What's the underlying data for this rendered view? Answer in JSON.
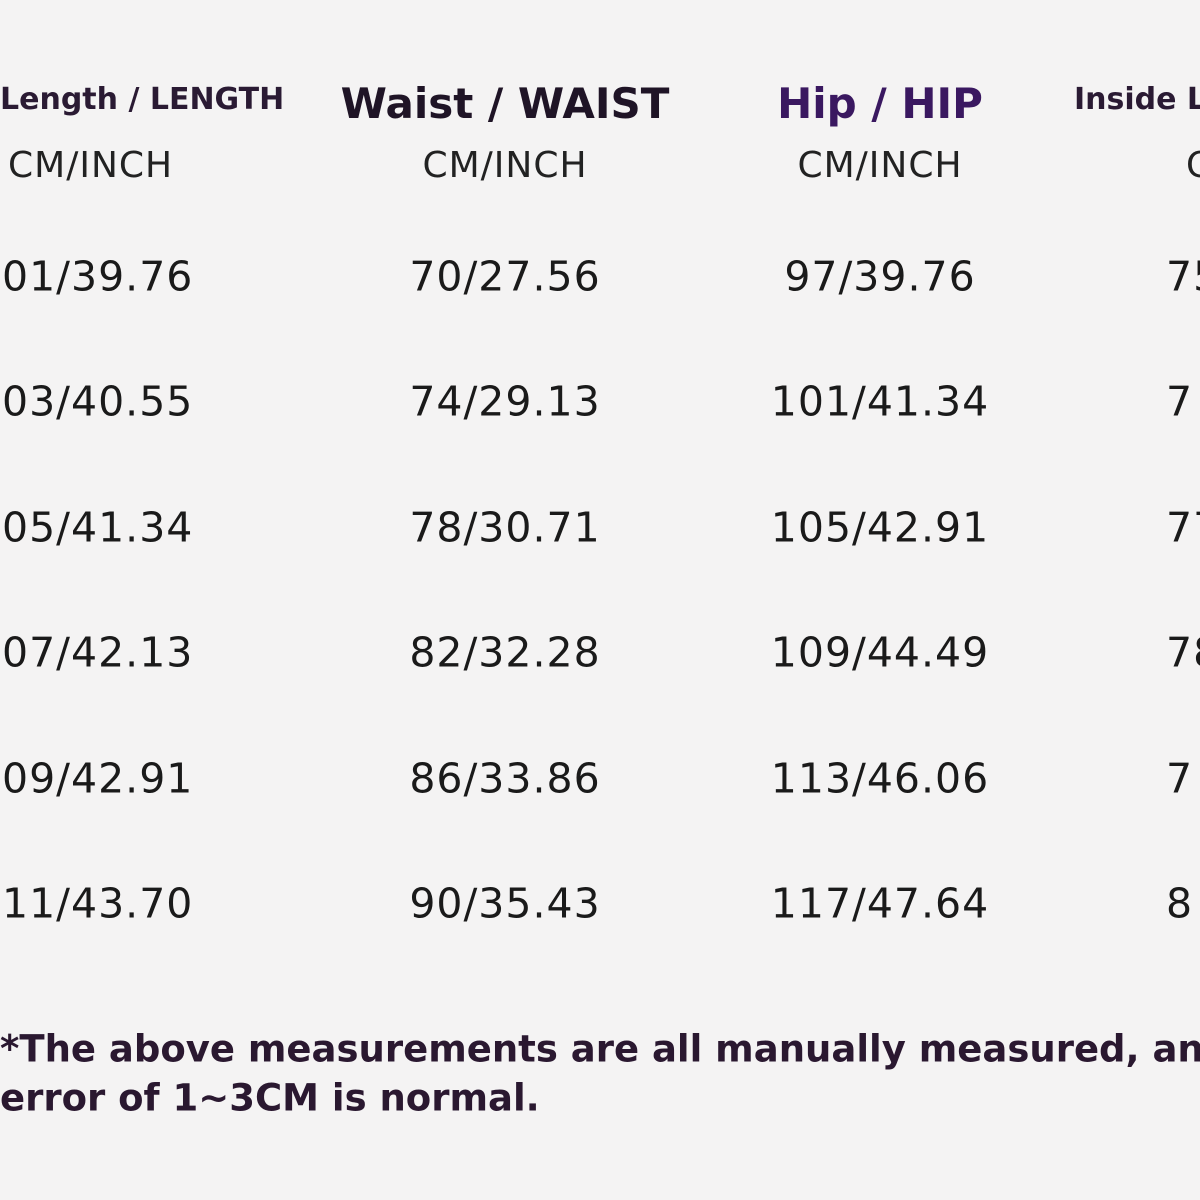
{
  "table": {
    "headers": [
      "Length / LENGTH",
      "Waist / WAIST",
      "Hip / HIP",
      "Inside L"
    ],
    "units": [
      "CM/INCH",
      "CM/INCH",
      "CM/INCH",
      "C"
    ],
    "rows": [
      [
        "01/39.76",
        "70/27.56",
        "97/39.76",
        "75"
      ],
      [
        "03/40.55",
        "74/29.13",
        "101/41.34",
        "7"
      ],
      [
        "05/41.34",
        "78/30.71",
        "105/42.91",
        "77"
      ],
      [
        "07/42.13",
        "82/32.28",
        "109/44.49",
        "78"
      ],
      [
        "09/42.91",
        "86/33.86",
        "113/46.06",
        "7"
      ],
      [
        "11/43.70",
        "90/35.43",
        "117/47.64",
        "8"
      ]
    ]
  },
  "footnote": [
    "*The above measurements are all manually measured, an",
    "error of 1~3CM is normal."
  ]
}
